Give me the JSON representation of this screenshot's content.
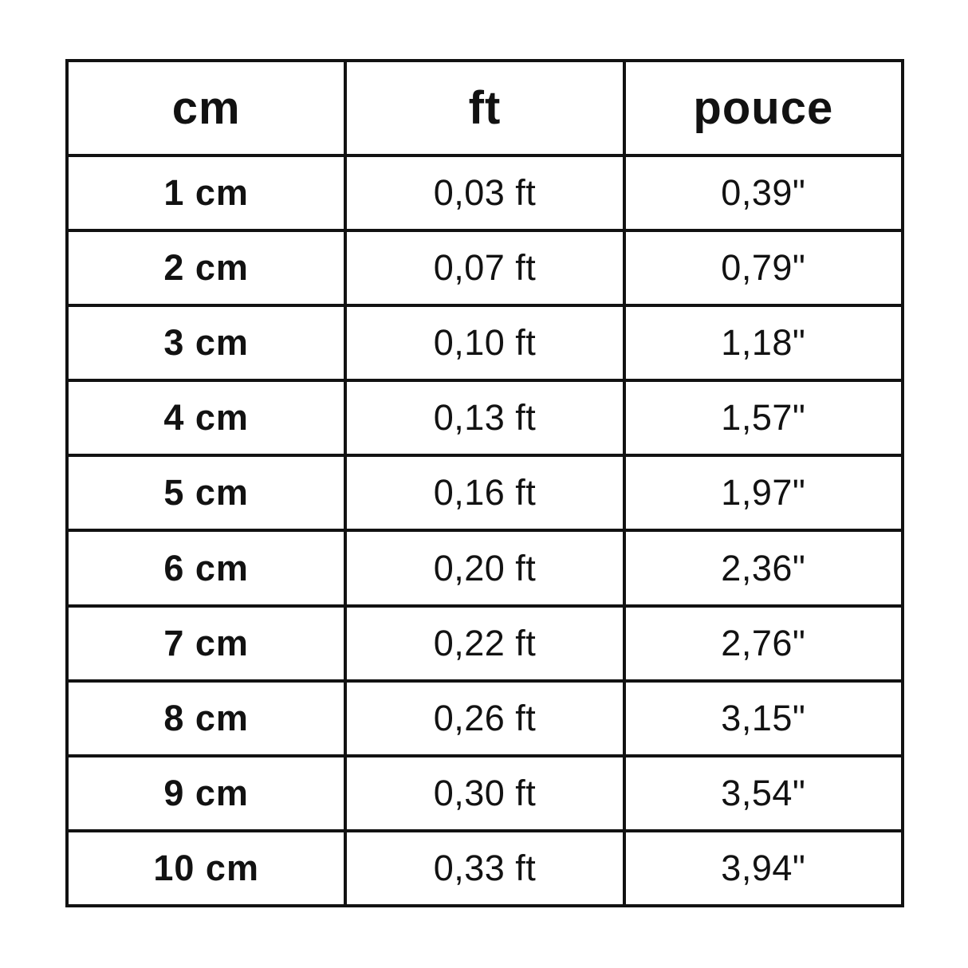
{
  "page": {
    "background_color": "#ffffff",
    "text_color": "#121212",
    "border_color": "#121212"
  },
  "table": {
    "columns": [
      "cm",
      "ft",
      "pouce"
    ],
    "rows": [
      {
        "cm": "1 cm",
        "ft": "0,03 ft",
        "pouce": "0,39\""
      },
      {
        "cm": "2 cm",
        "ft": "0,07 ft",
        "pouce": "0,79\""
      },
      {
        "cm": "3 cm",
        "ft": "0,10 ft",
        "pouce": "1,18\""
      },
      {
        "cm": "4 cm",
        "ft": "0,13 ft",
        "pouce": "1,57\""
      },
      {
        "cm": "5 cm",
        "ft": "0,16 ft",
        "pouce": "1,97\""
      },
      {
        "cm": "6 cm",
        "ft": "0,20 ft",
        "pouce": "2,36\""
      },
      {
        "cm": "7 cm",
        "ft": "0,22 ft",
        "pouce": "2,76\""
      },
      {
        "cm": "8 cm",
        "ft": "0,26 ft",
        "pouce": "3,15\""
      },
      {
        "cm": "9 cm",
        "ft": "0,30 ft",
        "pouce": "3,54\""
      },
      {
        "cm": "10 cm",
        "ft": "0,33 ft",
        "pouce": "3,94\""
      }
    ]
  },
  "chart_data": {
    "type": "table",
    "title": "",
    "columns": [
      "cm",
      "ft",
      "pouce"
    ],
    "rows": [
      [
        "1 cm",
        "0,03 ft",
        "0,39\""
      ],
      [
        "2 cm",
        "0,07 ft",
        "0,79\""
      ],
      [
        "3 cm",
        "0,10 ft",
        "1,18\""
      ],
      [
        "4 cm",
        "0,13 ft",
        "1,57\""
      ],
      [
        "5 cm",
        "0,16 ft",
        "1,97\""
      ],
      [
        "6 cm",
        "0,20 ft",
        "2,36\""
      ],
      [
        "7 cm",
        "0,22 ft",
        "2,76\""
      ],
      [
        "8 cm",
        "0,26 ft",
        "3,15\""
      ],
      [
        "9 cm",
        "0,30 ft",
        "3,54\""
      ],
      [
        "10 cm",
        "0,33 ft",
        "3,94\""
      ]
    ]
  }
}
